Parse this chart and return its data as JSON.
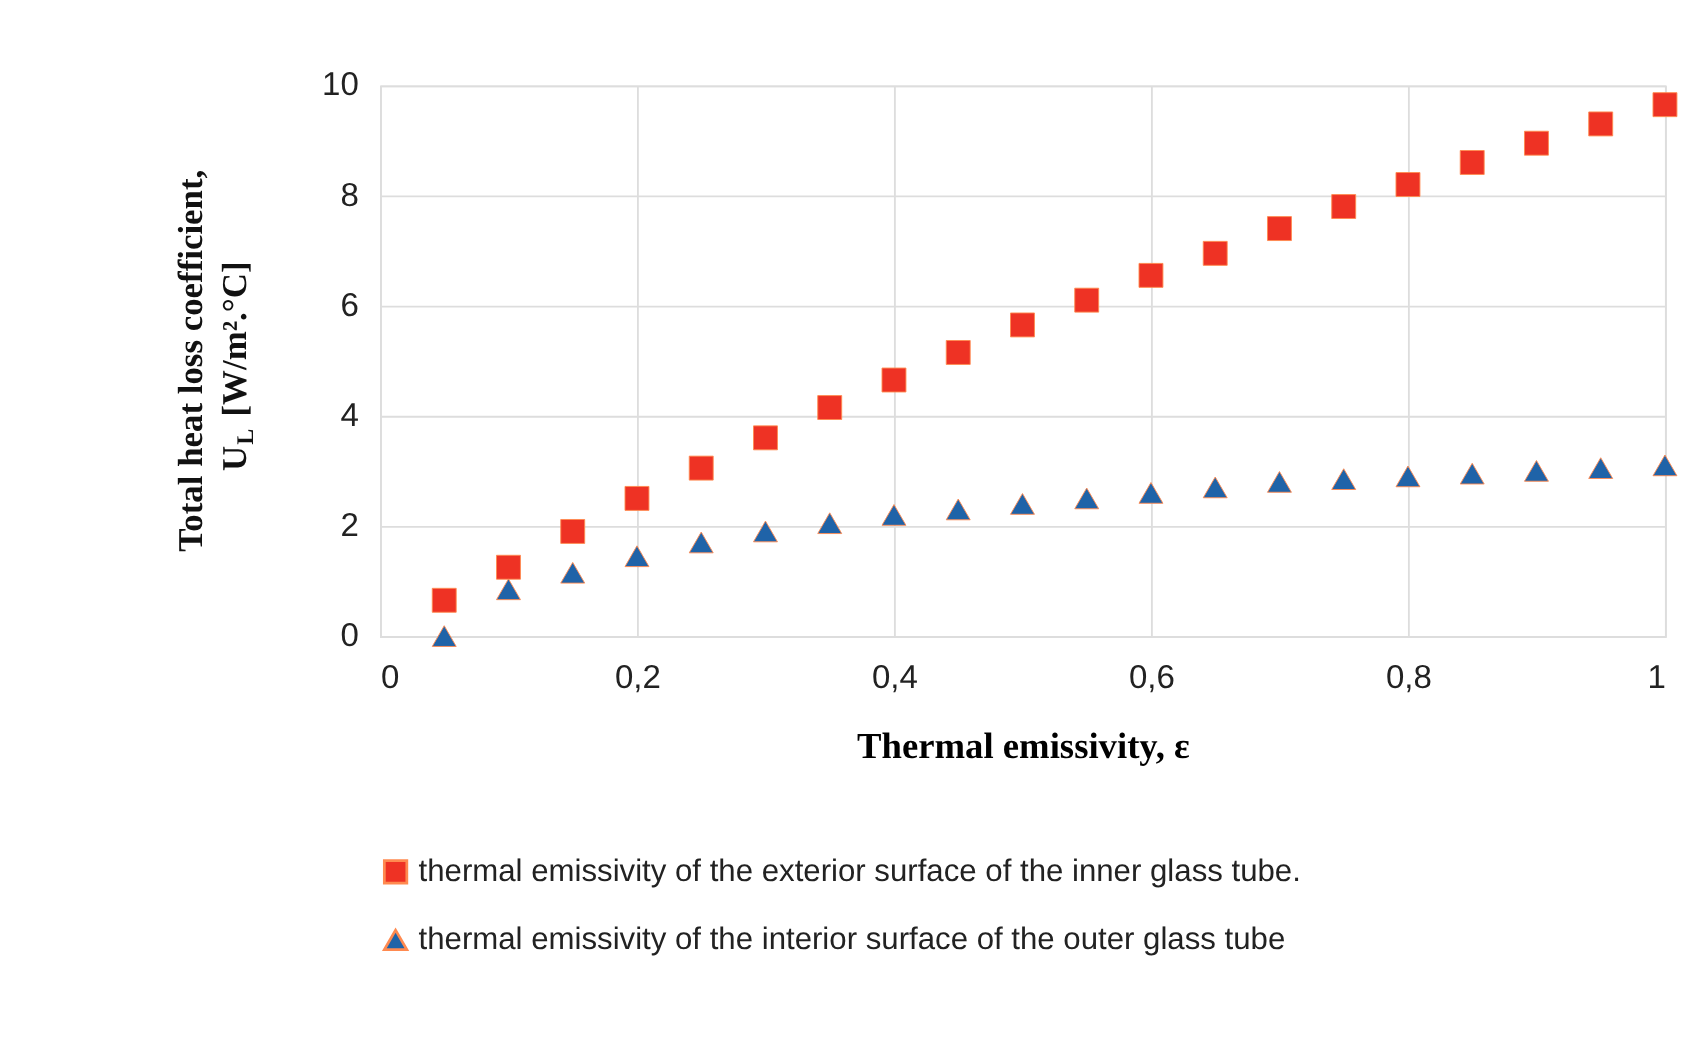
{
  "chart_data": {
    "type": "scatter",
    "xlabel": "Thermal emissivity, ε",
    "ylabel": "Total heat loss coefficient, U$_{L}$ [W/m².°C]",
    "x": [
      0.05,
      0.1,
      0.15,
      0.2,
      0.25,
      0.3,
      0.35,
      0.4,
      0.45,
      0.5,
      0.55,
      0.6,
      0.65,
      0.7,
      0.75,
      0.8,
      0.85,
      0.9,
      0.95,
      1
    ],
    "series": [
      {
        "name": "thermal emissivity of the exterior surface of the inner glass tube.",
        "color": "#ee3224",
        "marker": "square",
        "values": [
          0.65,
          1.25,
          1.9,
          2.5,
          3.05,
          3.6,
          4.15,
          4.65,
          5.15,
          5.65,
          6.1,
          6.55,
          6.95,
          7.4,
          7.8,
          8.2,
          8.6,
          8.95,
          9.3,
          9.65
        ]
      },
      {
        "name": "thermal emissivity of the interior surface of the outer glass tube",
        "color": "#1f63a8",
        "marker": "triangle",
        "values": [
          0.0,
          0.85,
          1.15,
          1.45,
          1.7,
          1.9,
          2.05,
          2.2,
          2.3,
          2.4,
          2.5,
          2.6,
          2.7,
          2.8,
          2.85,
          2.9,
          2.95,
          3.0,
          3.05,
          3.1
        ]
      }
    ],
    "xlim": [
      0,
      1
    ],
    "xticks": [
      0,
      {
        "value": 0.2,
        "label": "0,2"
      },
      {
        "value": 0.4,
        "label": "0,4"
      },
      {
        "value": 0.6,
        "label": "0,6"
      },
      {
        "value": 0.8,
        "label": "0,8"
      },
      1
    ],
    "ylim": [
      0,
      10
    ],
    "yticks": [
      0,
      2,
      4,
      6,
      8,
      10
    ],
    "grid": true,
    "legend": "bottom"
  }
}
